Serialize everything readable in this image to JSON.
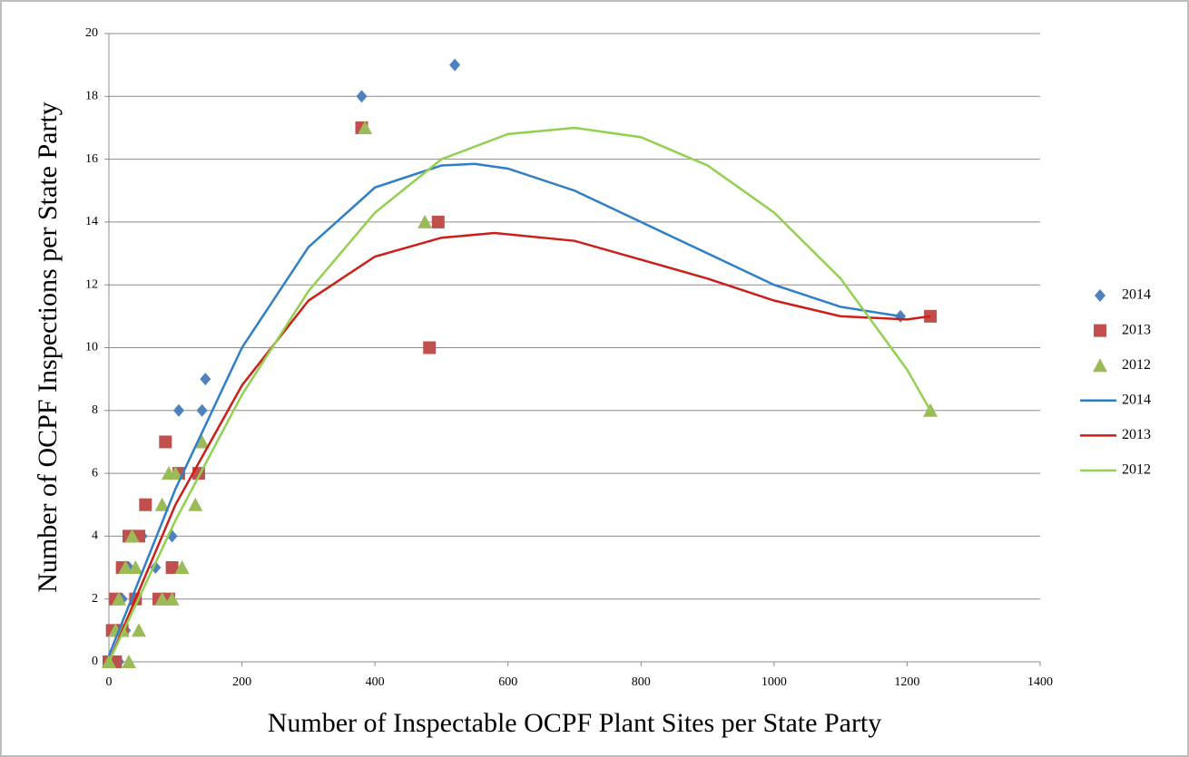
{
  "chart_data": {
    "type": "scatter",
    "x_label": "Number of Inspectable OCPF Plant Sites per State Party",
    "y_label": "Number of OCPF Inspections per State Party",
    "xlim": [
      0,
      1400
    ],
    "xticks": [
      0,
      200,
      400,
      600,
      800,
      1000,
      1200,
      1400
    ],
    "ylim": [
      0,
      20
    ],
    "yticks": [
      0,
      2,
      4,
      6,
      8,
      10,
      12,
      14,
      16,
      18,
      20
    ],
    "grid": true,
    "legend": "right",
    "series": [
      {
        "name": "2014",
        "type": "scatter",
        "marker": "diamond",
        "color": "#4f81bd",
        "x": [
          0,
          10,
          15,
          20,
          25,
          30,
          50,
          70,
          95,
          105,
          140,
          145,
          380,
          520,
          1190
        ],
        "values": [
          0,
          1,
          0,
          2,
          1,
          3,
          4,
          3,
          4,
          8,
          8,
          9,
          18,
          19,
          11
        ]
      },
      {
        "name": "2013",
        "type": "scatter",
        "marker": "square",
        "color": "#c0504d",
        "x": [
          0,
          5,
          10,
          10,
          20,
          20,
          30,
          40,
          45,
          55,
          75,
          85,
          90,
          95,
          105,
          135,
          380,
          482,
          495,
          1235
        ],
        "values": [
          0,
          1,
          2,
          0,
          3,
          1,
          4,
          2,
          4,
          5,
          2,
          7,
          2,
          3,
          6,
          6,
          17,
          10,
          14,
          11
        ]
      },
      {
        "name": "2012",
        "type": "scatter",
        "marker": "triangle",
        "color": "#9bbb59",
        "x": [
          0,
          10,
          15,
          20,
          25,
          30,
          35,
          40,
          45,
          80,
          80,
          90,
          95,
          100,
          110,
          130,
          140,
          385,
          475,
          1235
        ],
        "values": [
          0,
          1,
          2,
          1,
          3,
          0,
          4,
          3,
          1,
          2,
          5,
          6,
          2,
          6,
          3,
          5,
          7,
          17,
          14,
          8
        ]
      },
      {
        "name": "2014",
        "type": "line",
        "color": "#2e7fc8",
        "x": [
          0,
          100,
          200,
          300,
          400,
          500,
          550,
          600,
          700,
          800,
          900,
          1000,
          1100,
          1190
        ],
        "values": [
          0.2,
          5.5,
          10,
          13.2,
          15.1,
          15.8,
          15.85,
          15.7,
          15,
          14,
          13,
          12,
          11.3,
          11
        ]
      },
      {
        "name": "2013",
        "type": "line",
        "color": "#cc1f1a",
        "x": [
          0,
          100,
          200,
          300,
          400,
          500,
          580,
          700,
          800,
          900,
          1000,
          1100,
          1200,
          1235
        ],
        "values": [
          0,
          5,
          8.8,
          11.5,
          12.9,
          13.5,
          13.65,
          13.4,
          12.8,
          12.2,
          11.5,
          11,
          10.9,
          11
        ]
      },
      {
        "name": "2012",
        "type": "line",
        "color": "#92d050",
        "x": [
          0,
          100,
          200,
          300,
          400,
          500,
          600,
          700,
          800,
          900,
          1000,
          1100,
          1200,
          1235
        ],
        "values": [
          0,
          4.5,
          8.5,
          11.8,
          14.3,
          16,
          16.8,
          17,
          16.7,
          15.8,
          14.3,
          12.2,
          9.3,
          8
        ]
      }
    ]
  }
}
